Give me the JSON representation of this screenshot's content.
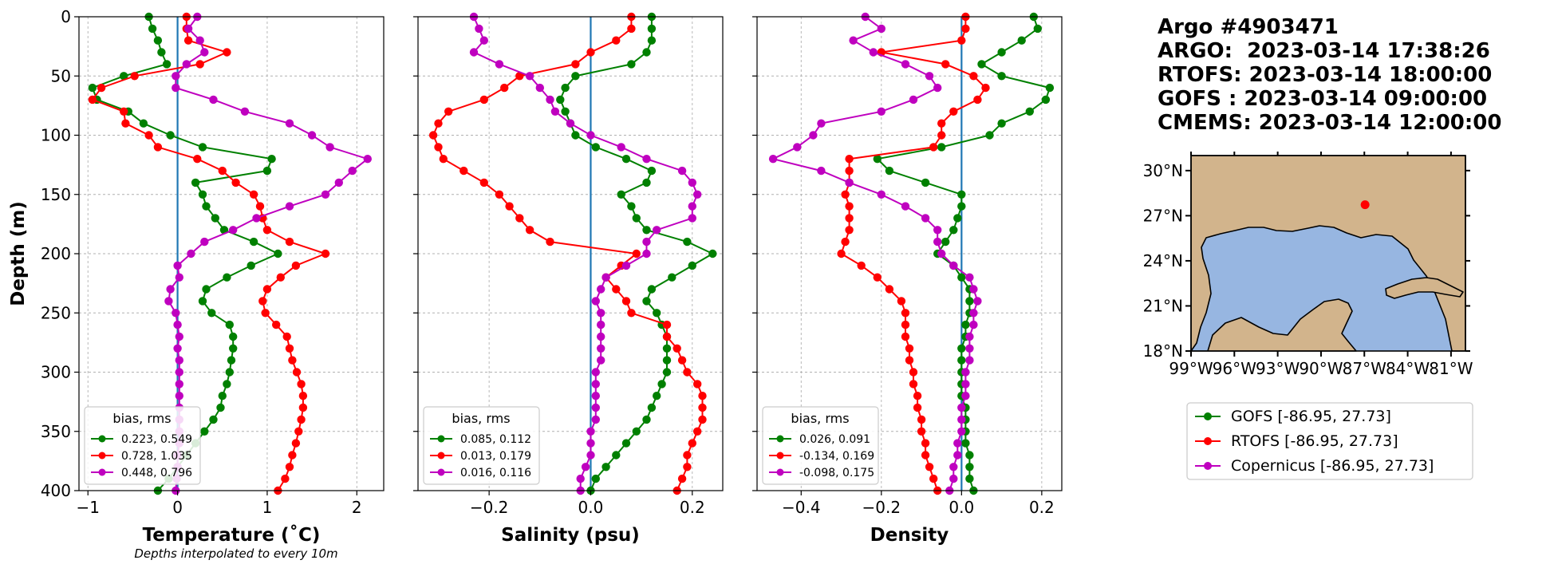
{
  "figure": {
    "footnote": "Depths interpolated to every 10m",
    "info_lines": [
      "Argo #4903471",
      "ARGO:  2023-03-14 17:38:26",
      "RTOFS: 2023-03-14 18:00:00",
      "GOFS : 2023-03-14 09:00:00",
      "CMEMS: 2023-03-14 12:00:00"
    ],
    "legend_entries": [
      {
        "label": "GOFS [-86.95, 27.73]",
        "color": "#008000"
      },
      {
        "label": "RTOFS [-86.95, 27.73]",
        "color": "#ff0000"
      },
      {
        "label": "Copernicus [-86.95, 27.73]",
        "color": "#bf00bf"
      }
    ]
  },
  "chart_data": [
    {
      "type": "line",
      "xlabel": "Temperature (˚C)",
      "ylabel": "Depth (m)",
      "xlim": [
        -1.1,
        2.3
      ],
      "ylim": [
        400,
        0
      ],
      "xticks": [
        -1,
        0,
        1,
        2
      ],
      "xtick_labels": [
        "−1",
        "0",
        "1",
        "2"
      ],
      "yticks": [
        0,
        50,
        100,
        150,
        200,
        250,
        300,
        350,
        400
      ],
      "ytick_labels": [
        "0",
        "50",
        "100",
        "150",
        "200",
        "250",
        "300",
        "350",
        "400"
      ],
      "grid": true,
      "zero_line": 0,
      "legend": {
        "title": "bias, rms",
        "location": "lower left",
        "entries": [
          "0.223, 0.549",
          "0.728, 1.035",
          "0.448, 0.796"
        ]
      },
      "depths": [
        0,
        10,
        20,
        30,
        40,
        50,
        60,
        70,
        80,
        90,
        100,
        110,
        120,
        130,
        140,
        150,
        160,
        170,
        180,
        190,
        200,
        210,
        220,
        230,
        240,
        250,
        260,
        270,
        280,
        290,
        300,
        310,
        320,
        330,
        340,
        350,
        360,
        370,
        380,
        390,
        400
      ],
      "series": [
        {
          "color": "#008000",
          "values": [
            -0.32,
            -0.28,
            -0.22,
            -0.18,
            -0.12,
            -0.6,
            -0.95,
            -0.9,
            -0.55,
            -0.38,
            -0.08,
            0.28,
            1.05,
            1.0,
            0.2,
            0.28,
            0.32,
            0.42,
            0.52,
            0.85,
            1.12,
            0.82,
            0.55,
            0.32,
            0.28,
            0.38,
            0.58,
            0.62,
            0.62,
            0.6,
            0.58,
            0.55,
            0.5,
            0.48,
            0.4,
            0.3,
            0.2,
            0.1,
            0.0,
            -0.1,
            -0.22
          ]
        },
        {
          "color": "#ff0000",
          "values": [
            0.1,
            0.1,
            0.12,
            0.55,
            0.25,
            -0.48,
            -0.85,
            -0.95,
            -0.6,
            -0.58,
            -0.32,
            -0.22,
            0.22,
            0.5,
            0.65,
            0.85,
            0.92,
            0.95,
            1.0,
            1.25,
            1.65,
            1.32,
            1.15,
            1.0,
            0.95,
            0.98,
            1.1,
            1.22,
            1.25,
            1.28,
            1.33,
            1.38,
            1.4,
            1.4,
            1.38,
            1.35,
            1.32,
            1.28,
            1.25,
            1.2,
            1.12
          ]
        },
        {
          "color": "#bf00bf",
          "values": [
            0.22,
            0.12,
            0.25,
            0.3,
            0.1,
            -0.02,
            -0.02,
            0.4,
            0.75,
            1.25,
            1.5,
            1.7,
            2.12,
            1.95,
            1.8,
            1.65,
            1.25,
            0.88,
            0.62,
            0.3,
            0.15,
            0.0,
            0.02,
            -0.08,
            -0.1,
            -0.02,
            0.0,
            0.02,
            0.0,
            0.02,
            0.02,
            0.02,
            0.02,
            0.02,
            0.02,
            0.02,
            0.02,
            0.0,
            0.0,
            -0.01,
            -0.02
          ]
        }
      ]
    },
    {
      "type": "line",
      "xlabel": "Salinity (psu)",
      "ylabel": "",
      "xlim": [
        -0.34,
        0.26
      ],
      "ylim": [
        400,
        0
      ],
      "xticks": [
        -0.2,
        0.0,
        0.2
      ],
      "xtick_labels": [
        "−0.2",
        "0.0",
        "0.2"
      ],
      "grid": true,
      "zero_line": 0,
      "legend": {
        "title": "bias, rms",
        "location": "lower left",
        "entries": [
          "0.085, 0.112",
          "0.013, 0.179",
          "0.016, 0.116"
        ]
      },
      "depths": [
        0,
        10,
        20,
        30,
        40,
        50,
        60,
        70,
        80,
        90,
        100,
        110,
        120,
        130,
        140,
        150,
        160,
        170,
        180,
        190,
        200,
        210,
        220,
        230,
        240,
        250,
        260,
        270,
        280,
        290,
        300,
        310,
        320,
        330,
        340,
        350,
        360,
        370,
        380,
        390,
        400
      ],
      "series": [
        {
          "color": "#008000",
          "values": [
            0.12,
            0.12,
            0.12,
            0.11,
            0.08,
            -0.03,
            -0.05,
            -0.06,
            -0.05,
            -0.04,
            -0.03,
            0.01,
            0.07,
            0.12,
            0.11,
            0.06,
            0.08,
            0.09,
            0.11,
            0.19,
            0.24,
            0.2,
            0.16,
            0.12,
            0.11,
            0.13,
            0.14,
            0.15,
            0.15,
            0.15,
            0.15,
            0.14,
            0.13,
            0.12,
            0.11,
            0.09,
            0.07,
            0.05,
            0.03,
            0.01,
            0.0
          ]
        },
        {
          "color": "#ff0000",
          "values": [
            0.08,
            0.08,
            0.05,
            0.0,
            -0.03,
            -0.14,
            -0.17,
            -0.21,
            -0.28,
            -0.3,
            -0.31,
            -0.3,
            -0.29,
            -0.25,
            -0.21,
            -0.18,
            -0.16,
            -0.14,
            -0.12,
            -0.08,
            0.09,
            0.06,
            0.03,
            0.05,
            0.07,
            0.08,
            0.15,
            0.15,
            0.17,
            0.18,
            0.19,
            0.21,
            0.22,
            0.22,
            0.22,
            0.21,
            0.2,
            0.19,
            0.19,
            0.18,
            0.17
          ]
        },
        {
          "color": "#bf00bf",
          "values": [
            -0.23,
            -0.22,
            -0.21,
            -0.23,
            -0.18,
            -0.12,
            -0.1,
            -0.08,
            -0.07,
            -0.04,
            0.0,
            0.06,
            0.11,
            0.18,
            0.2,
            0.21,
            0.2,
            0.2,
            0.13,
            0.11,
            0.11,
            0.07,
            0.03,
            0.02,
            0.01,
            0.02,
            0.02,
            0.02,
            0.02,
            0.02,
            0.01,
            0.01,
            0.01,
            0.01,
            0.01,
            0.0,
            0.0,
            0.0,
            -0.01,
            -0.02,
            -0.02
          ]
        }
      ]
    },
    {
      "type": "line",
      "xlabel": "Density",
      "ylabel": "",
      "xlim": [
        -0.51,
        0.25
      ],
      "ylim": [
        400,
        0
      ],
      "xticks": [
        -0.4,
        -0.2,
        0.0,
        0.2
      ],
      "xtick_labels": [
        "−0.4",
        "−0.2",
        "0.0",
        "0.2"
      ],
      "grid": true,
      "zero_line": 0,
      "legend": {
        "title": "bias, rms",
        "location": "lower left",
        "entries": [
          "0.026, 0.091",
          "-0.134, 0.169",
          "-0.098, 0.175"
        ]
      },
      "depths": [
        0,
        10,
        20,
        30,
        40,
        50,
        60,
        70,
        80,
        90,
        100,
        110,
        120,
        130,
        140,
        150,
        160,
        170,
        180,
        190,
        200,
        210,
        220,
        230,
        240,
        250,
        260,
        270,
        280,
        290,
        300,
        310,
        320,
        330,
        340,
        350,
        360,
        370,
        380,
        390,
        400
      ],
      "series": [
        {
          "color": "#008000",
          "values": [
            0.18,
            0.19,
            0.15,
            0.1,
            0.05,
            0.1,
            0.22,
            0.21,
            0.17,
            0.1,
            0.07,
            -0.05,
            -0.21,
            -0.18,
            -0.09,
            0.0,
            0.0,
            -0.01,
            -0.02,
            -0.04,
            -0.06,
            -0.02,
            0.0,
            0.02,
            0.02,
            0.02,
            0.01,
            0.01,
            0.0,
            0.0,
            0.0,
            0.0,
            0.0,
            0.01,
            0.01,
            0.01,
            0.01,
            0.02,
            0.02,
            0.02,
            0.03
          ]
        },
        {
          "color": "#ff0000",
          "values": [
            0.01,
            0.01,
            0.0,
            -0.2,
            -0.04,
            0.03,
            0.06,
            0.04,
            -0.02,
            -0.05,
            -0.05,
            -0.07,
            -0.28,
            -0.28,
            -0.28,
            -0.29,
            -0.28,
            -0.28,
            -0.28,
            -0.29,
            -0.3,
            -0.25,
            -0.21,
            -0.18,
            -0.15,
            -0.14,
            -0.14,
            -0.14,
            -0.13,
            -0.13,
            -0.12,
            -0.12,
            -0.11,
            -0.11,
            -0.1,
            -0.1,
            -0.09,
            -0.09,
            -0.08,
            -0.07,
            -0.06
          ]
        },
        {
          "color": "#bf00bf",
          "values": [
            -0.24,
            -0.2,
            -0.27,
            -0.22,
            -0.14,
            -0.08,
            -0.06,
            -0.12,
            -0.2,
            -0.35,
            -0.37,
            -0.41,
            -0.47,
            -0.35,
            -0.28,
            -0.2,
            -0.14,
            -0.09,
            -0.06,
            -0.06,
            -0.05,
            -0.02,
            0.02,
            0.03,
            0.04,
            0.03,
            0.03,
            0.02,
            0.02,
            0.02,
            0.01,
            0.01,
            0.01,
            0.0,
            0.0,
            0.0,
            -0.01,
            -0.01,
            -0.02,
            -0.02,
            -0.03
          ]
        }
      ]
    }
  ],
  "map": {
    "lon_range": [
      -99,
      -80
    ],
    "lat_range": [
      18,
      31
    ],
    "x_tick_labels": [
      "99°W",
      "96°W",
      "93°W",
      "90°W",
      "87°W",
      "84°W",
      "81°W"
    ],
    "x_tick_values": [
      -99,
      -96,
      -93,
      -90,
      -87,
      -84,
      -81
    ],
    "y_tick_labels": [
      "18°N",
      "21°N",
      "24°N",
      "27°N",
      "30°N"
    ],
    "y_tick_values": [
      18,
      21,
      24,
      27,
      30
    ],
    "marker": {
      "lon": -86.95,
      "lat": 27.73,
      "color": "#ff0000"
    },
    "ocean_color": "#97b6e1",
    "land_color": "#d2b48c"
  }
}
